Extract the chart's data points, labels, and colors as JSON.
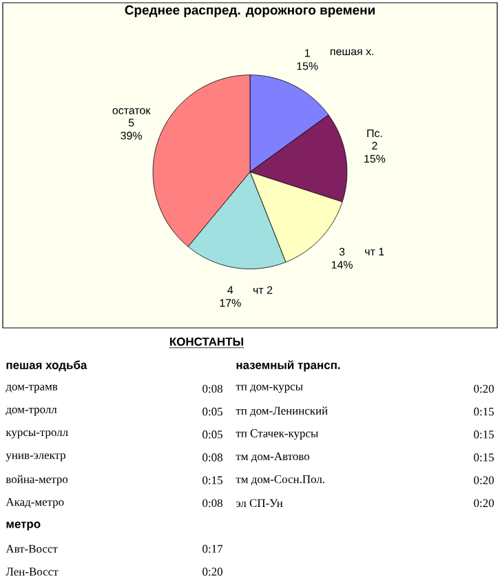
{
  "chart_data": [
    {
      "type": "pie",
      "title": "Среднее распред. дорожного времени",
      "categories": [
        "1",
        "2",
        "3",
        "4",
        "5"
      ],
      "values": [
        15,
        15,
        14,
        17,
        39
      ],
      "colors": [
        "#8080ff",
        "#802060",
        "#ffffc0",
        "#a0e0e0",
        "#ff8080"
      ],
      "value_labels": [
        "15%",
        "15%",
        "14%",
        "17%",
        "39%"
      ],
      "annotations": [
        "пешая х.",
        "Пс.",
        "чт 1",
        "чт 2",
        "остаток"
      ]
    },
    {
      "type": "other",
      "annotations": [
        "КОНСТАНТЫ",
        "пешая ходьба",
        "наземный трансп.",
        "дом-трамв",
        "0:08",
        "тп дом-курсы",
        "0:20",
        "дом-тролл",
        "0:05",
        "тп дом-Ленинский",
        "0:15",
        "курсы-тролл",
        "0:05",
        "тп Стачек-курсы",
        "0:15",
        "унив-электр",
        "0:08",
        "тм дом-Автово",
        "0:15",
        "война-метро",
        "0:15",
        "тм дом-Сосн.Пол.",
        "0:20",
        "Акад-метро",
        "0:08",
        "эл СП-Ун",
        "0:20",
        "метро",
        "Авт-Восст",
        "0:17",
        "Лен-Восст",
        "0:20"
      ]
    }
  ]
}
